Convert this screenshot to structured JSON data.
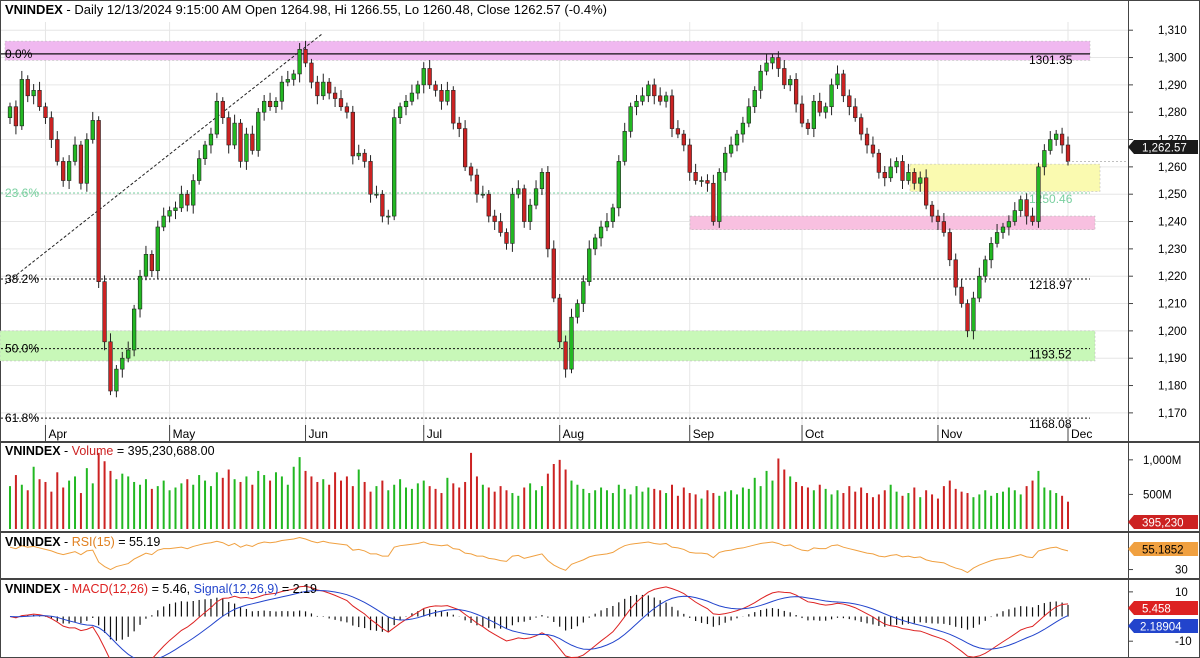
{
  "chart_data": {
    "type": "candlestick",
    "symbol": "VNINDEX",
    "header": {
      "symbol": "VNINDEX",
      "text": " - Daily 12/13/2024 9:15:00 AM Open 1264.98, Hi 1266.55, Lo 1260.48, Close 1262.57 (-0.4%)"
    },
    "ylim": [
      1163,
      1313
    ],
    "y_ticks": [
      "1,310",
      "1,300",
      "1,290",
      "1,280",
      "1,270",
      "1,260",
      "1,250",
      "1,240",
      "1,230",
      "1,220",
      "1,210",
      "1,200",
      "1,190",
      "1,180",
      "1,170"
    ],
    "y_tick_values": [
      1310,
      1300,
      1290,
      1280,
      1270,
      1260,
      1250,
      1240,
      1230,
      1220,
      1210,
      1200,
      1190,
      1180,
      1170
    ],
    "x_labels": [
      {
        "label": "Apr",
        "index": 6
      },
      {
        "label": "May",
        "index": 27
      },
      {
        "label": "Jun",
        "index": 50
      },
      {
        "label": "Jul",
        "index": 70
      },
      {
        "label": "Aug",
        "index": 93
      },
      {
        "label": "Sep",
        "index": 115
      },
      {
        "label": "Oct",
        "index": 134
      },
      {
        "label": "Nov",
        "index": 157
      },
      {
        "label": "Dec",
        "index": 179
      }
    ],
    "last_close_label": "1,262.57",
    "closes": [
      1282,
      1275,
      1292,
      1286,
      1288,
      1282,
      1278,
      1270,
      1262,
      1255,
      1262,
      1268,
      1254,
      1270,
      1277,
      1218,
      1196,
      1178,
      1186,
      1190,
      1193,
      1208,
      1220,
      1228,
      1222,
      1238,
      1242,
      1244,
      1245,
      1250,
      1246,
      1255,
      1263,
      1268,
      1272,
      1284,
      1278,
      1268,
      1276,
      1262,
      1272,
      1266,
      1280,
      1284,
      1282,
      1284,
      1291,
      1292,
      1294,
      1303,
      1298,
      1291,
      1286,
      1291,
      1287,
      1285,
      1282,
      1280,
      1264,
      1265,
      1262,
      1250,
      1250,
      1242,
      1242,
      1278,
      1282,
      1284,
      1287,
      1290,
      1296,
      1290,
      1288,
      1284,
      1288,
      1276,
      1274,
      1260,
      1257,
      1250,
      1250,
      1242,
      1240,
      1236,
      1232,
      1250,
      1252,
      1240,
      1246,
      1252,
      1258,
      1230,
      1212,
      1196,
      1186,
      1205,
      1210,
      1218,
      1230,
      1234,
      1238,
      1240,
      1245,
      1262,
      1273,
      1282,
      1284,
      1286,
      1290,
      1286,
      1284,
      1286,
      1274,
      1272,
      1268,
      1258,
      1255,
      1255,
      1254,
      1240,
      1258,
      1265,
      1268,
      1272,
      1276,
      1282,
      1288,
      1295,
      1298,
      1300,
      1296,
      1290,
      1292,
      1283,
      1276,
      1274,
      1284,
      1280,
      1282,
      1290,
      1294,
      1286,
      1282,
      1278,
      1272,
      1268,
      1265,
      1258,
      1256,
      1260,
      1262,
      1255,
      1258,
      1254,
      1256,
      1246,
      1242,
      1240,
      1236,
      1226,
      1216,
      1210,
      1200,
      1212,
      1220,
      1226,
      1232,
      1236,
      1238,
      1240,
      1244,
      1248,
      1242,
      1240,
      1260,
      1266,
      1270,
      1272,
      1268,
      1262
    ],
    "fib_levels": [
      {
        "label": "0.0%",
        "value_label": "1301.35",
        "value": 1301.35
      },
      {
        "label": "23.6%",
        "value_label": "1250.46",
        "value": 1250.46
      },
      {
        "label": "38.2%",
        "value_label": "1218.97",
        "value": 1218.97
      },
      {
        "label": "50.0%",
        "value_label": "1193.52",
        "value": 1193.52
      },
      {
        "label": "61.8%",
        "value_label": "1168.08",
        "value": 1168.08
      }
    ],
    "zones": [
      {
        "name": "resistance-zone-top",
        "from": 1299,
        "to": 1306,
        "color": "#f0b8f0"
      },
      {
        "name": "supply-zone",
        "from": 1251,
        "to": 1261,
        "color": "#fafab0"
      },
      {
        "name": "demand-zone",
        "from": 1237,
        "to": 1242,
        "color": "#f8c0e0"
      },
      {
        "name": "support-zone",
        "from": 1189,
        "to": 1200,
        "color": "#c8f8b8"
      }
    ],
    "volume": {
      "label": "Volume",
      "value_text": " = 395,230,688.00",
      "last_label": "395,230",
      "ticks": [
        "1,000M",
        "500M"
      ],
      "tick_values": [
        1000,
        500
      ],
      "values_millions": [
        620,
        780,
        640,
        560,
        900,
        720,
        680,
        540,
        820,
        600,
        700,
        760,
        520,
        880,
        660,
        1100,
        980,
        840,
        720,
        800,
        760,
        680,
        640,
        720,
        580,
        620,
        700,
        560,
        600,
        660,
        720,
        640,
        780,
        700,
        620,
        820,
        740,
        860,
        720,
        680,
        760,
        640,
        840,
        780,
        700,
        820,
        760,
        640,
        900,
        1040,
        840,
        760,
        680,
        720,
        640,
        820,
        700,
        760,
        620,
        860,
        680,
        540,
        620,
        700,
        560,
        640,
        720,
        600,
        580,
        660,
        700,
        620,
        580,
        520,
        740,
        660,
        600,
        680,
        1100,
        760,
        640,
        600,
        540,
        620,
        560,
        520,
        480,
        600,
        660,
        560,
        620,
        800,
        940,
        1000,
        860,
        700,
        640,
        580,
        520,
        560,
        600,
        560,
        520,
        640,
        580,
        500,
        620,
        540,
        600,
        580,
        560,
        520,
        640,
        480,
        600,
        520,
        500,
        440,
        560,
        520,
        480,
        540,
        560,
        500,
        600,
        580,
        740,
        620,
        840,
        700,
        1020,
        860,
        760,
        680,
        620,
        600,
        560,
        640,
        580,
        500,
        560,
        520,
        620,
        540,
        600,
        520,
        460,
        500,
        560,
        640,
        540,
        480,
        520,
        600,
        460,
        560,
        500,
        440,
        620,
        700,
        580,
        540,
        520,
        460,
        500,
        560,
        480,
        520,
        540,
        600,
        560,
        500,
        620,
        700,
        840,
        600,
        560,
        520,
        480,
        395
      ],
      "ylim": [
        0,
        1200
      ]
    },
    "rsi": {
      "label": "RSI(15)",
      "value_text": " = 55.19",
      "last_label": "55.1852",
      "values": [
        60,
        58,
        62,
        60,
        61,
        59,
        57,
        55,
        52,
        50,
        52,
        54,
        50,
        55,
        56,
        40,
        34,
        30,
        34,
        36,
        38,
        44,
        48,
        52,
        50,
        56,
        58,
        58,
        59,
        60,
        58,
        61,
        63,
        65,
        66,
        68,
        66,
        62,
        65,
        60,
        63,
        61,
        65,
        67,
        66,
        67,
        69,
        70,
        71,
        73,
        71,
        68,
        66,
        68,
        66,
        65,
        64,
        63,
        56,
        57,
        55,
        51,
        51,
        48,
        48,
        60,
        62,
        63,
        64,
        65,
        67,
        64,
        63,
        62,
        63,
        58,
        57,
        52,
        51,
        48,
        48,
        45,
        44,
        42,
        41,
        48,
        49,
        45,
        47,
        49,
        51,
        42,
        36,
        32,
        29,
        37,
        40,
        43,
        47,
        49,
        50,
        51,
        53,
        58,
        62,
        64,
        65,
        66,
        67,
        65,
        64,
        65,
        60,
        59,
        57,
        53,
        52,
        52,
        51,
        46,
        53,
        55,
        56,
        58,
        59,
        61,
        63,
        65,
        66,
        67,
        65,
        62,
        63,
        59,
        56,
        55,
        59,
        58,
        58,
        62,
        63,
        60,
        58,
        56,
        54,
        52,
        51,
        48,
        47,
        49,
        50,
        47,
        48,
        46,
        47,
        43,
        41,
        40,
        39,
        35,
        32,
        30,
        26,
        32,
        36,
        39,
        42,
        44,
        45,
        46,
        48,
        50,
        47,
        46,
        55,
        57,
        59,
        60,
        57,
        55
      ],
      "ylim": [
        20,
        75
      ],
      "ticks": [
        "30"
      ],
      "tick_values": [
        30
      ]
    },
    "macd": {
      "label": "MACD(12,26)",
      "value_text": " = 5.46, ",
      "signal_label": "Signal(12,26,9)",
      "signal_text": " = 2.19",
      "last_macd_label": "5.458",
      "last_signal_label": "2.18904",
      "ticks": [
        "10",
        "-10"
      ],
      "tick_values": [
        10,
        -10
      ],
      "ylim": [
        -16,
        14
      ]
    },
    "colors": {
      "up": "#22b822",
      "down": "#cc2222",
      "rsi": "#f0a040",
      "macd": "#dd2222",
      "signal": "#2244cc",
      "last_price_bg": "#1a1a1a",
      "volume_last_bg": "#cc2222",
      "rsi_last_bg": "#f0a040",
      "macd_last_bg": "#dd2222",
      "signal_last_bg": "#2244cc"
    }
  }
}
